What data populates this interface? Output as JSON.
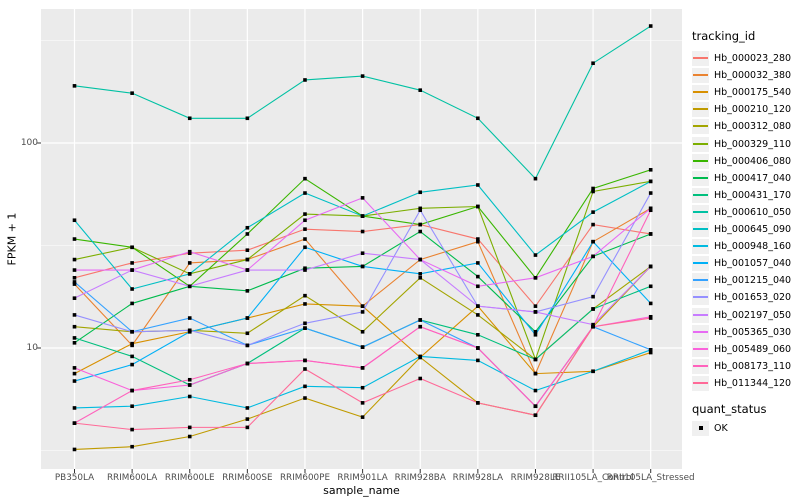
{
  "figure": {
    "bg": "#FFFFFF",
    "panel_bg": "#EBEBEB",
    "grid_color": "#FFFFFF",
    "tick_color": "#333333",
    "axis_text_color": "#4D4D4D",
    "point_color": "#000000"
  },
  "axes": {
    "x_title": "sample_name",
    "y_title": "FPKM + 1",
    "y_major_ticks": [
      {
        "label": "100",
        "value": 100
      },
      {
        "label": "10",
        "value": 10
      }
    ],
    "y_minor_values": [
      316.2,
      31.62,
      3.162
    ]
  },
  "legend": {
    "tracking_title": "tracking_id",
    "quant_title": "quant_status",
    "quant_items": [
      {
        "label": "OK",
        "shape": "square",
        "color": "#000000"
      }
    ]
  },
  "chart_data": {
    "type": "line",
    "title": "",
    "xlabel": "sample_name",
    "ylabel": "FPKM + 1",
    "y_scale": "log10",
    "ylim": [
      2.6,
      450
    ],
    "grid": true,
    "legend_position": "right",
    "point_shape": "square",
    "point_color": "#000000",
    "quant_status": "OK",
    "categories": [
      "PB350LA",
      "RRIM600LA",
      "RRIM600LE",
      "RRIM600SE",
      "RRIM600PE",
      "RRIM901LA",
      "RRIM928BA",
      "RRIM928LA",
      "RRIM928LE",
      "RRII105LA_Control",
      "RRII105LA_Stressed"
    ],
    "series": [
      {
        "name": "Hb_000023_280",
        "color": "#F8766D",
        "values": [
          22,
          26,
          29,
          30,
          38,
          37,
          40,
          34,
          16,
          40,
          36
        ]
      },
      {
        "name": "Hb_000032_380",
        "color": "#EA8331",
        "values": [
          20.5,
          10.3,
          26,
          27,
          34,
          16,
          27,
          33,
          7.5,
          33,
          48
        ]
      },
      {
        "name": "Hb_000175_540",
        "color": "#D89000",
        "values": [
          7.5,
          10.5,
          12,
          14,
          16.4,
          16,
          9,
          16,
          7.5,
          7.7,
          9.5
        ]
      },
      {
        "name": "Hb_000210_120",
        "color": "#C09B00",
        "values": [
          3.2,
          3.3,
          3.7,
          4.5,
          5.7,
          4.6,
          9,
          5.4,
          4.7,
          12.7,
          25
        ]
      },
      {
        "name": "Hb_000312_080",
        "color": "#A3A500",
        "values": [
          12.7,
          12,
          12.2,
          11.8,
          18,
          12,
          22,
          14.5,
          8.8,
          15.5,
          25
        ]
      },
      {
        "name": "Hb_000329_110",
        "color": "#7CAE00",
        "values": [
          27,
          31,
          23,
          27,
          45,
          44,
          48,
          49,
          8.8,
          58,
          65
        ]
      },
      {
        "name": "Hb_000406_080",
        "color": "#39B600",
        "values": [
          34,
          31,
          20,
          36,
          67,
          44,
          40,
          49,
          22,
          60,
          74
        ]
      },
      {
        "name": "Hb_000417_040",
        "color": "#00BB4E",
        "values": [
          10.6,
          16.5,
          20,
          19,
          24.5,
          25,
          37,
          22.3,
          12,
          28,
          36
        ]
      },
      {
        "name": "Hb_000431_170",
        "color": "#00BF7D",
        "values": [
          11.2,
          9.1,
          6.6,
          8.4,
          12.5,
          10.1,
          13.7,
          11.6,
          8.8,
          15.5,
          20
        ]
      },
      {
        "name": "Hb_000610_050",
        "color": "#00C1A3",
        "values": [
          190,
          175,
          132,
          132,
          203,
          212,
          181,
          132,
          67,
          245,
          372
        ]
      },
      {
        "name": "Hb_000645_090",
        "color": "#00BFC4",
        "values": [
          42,
          19.4,
          23,
          38.6,
          57,
          44,
          57.5,
          62.4,
          28.4,
          46,
          65
        ]
      },
      {
        "name": "Hb_000948_160",
        "color": "#00BAE0",
        "values": [
          5.1,
          5.2,
          5.8,
          5.1,
          6.5,
          6.4,
          9.1,
          8.7,
          6.2,
          7.7,
          9.8
        ]
      },
      {
        "name": "Hb_001057_040",
        "color": "#00B0F6",
        "values": [
          6.9,
          8.3,
          12,
          14,
          31,
          25,
          23,
          26,
          11.6,
          33,
          16.5
        ]
      },
      {
        "name": "Hb_001215_040",
        "color": "#35A2FF",
        "values": [
          21,
          12,
          14,
          10.3,
          12.5,
          10.1,
          13.7,
          10,
          5.2,
          12.7,
          9.8
        ]
      },
      {
        "name": "Hb_001653_020",
        "color": "#9590FF",
        "values": [
          14.5,
          12,
          12.2,
          10.3,
          13.2,
          15,
          47,
          16,
          15,
          17.8,
          57
        ]
      },
      {
        "name": "Hb_002197_050",
        "color": "#C77CFF",
        "values": [
          17.5,
          24,
          20,
          24,
          24,
          29,
          27,
          16,
          15,
          13,
          25
        ]
      },
      {
        "name": "Hb_005365_030",
        "color": "#E76BF3",
        "values": [
          24,
          24,
          29.5,
          24,
          42,
          54,
          27,
          20,
          22,
          28,
          48
        ]
      },
      {
        "name": "Hb_005489_060",
        "color": "#FA62DB",
        "values": [
          8,
          6.2,
          6.6,
          8.4,
          8.7,
          8,
          12.7,
          10,
          5.2,
          12.7,
          14.2
        ]
      },
      {
        "name": "Hb_008173_110",
        "color": "#FF62BC",
        "values": [
          4.3,
          6.2,
          7,
          8.4,
          8.7,
          8,
          12.7,
          10,
          5.2,
          12.7,
          47
        ]
      },
      {
        "name": "Hb_011344_120",
        "color": "#FF6A98",
        "values": [
          4.3,
          4.0,
          4.1,
          4.1,
          7.9,
          5.4,
          7.1,
          5.4,
          4.7,
          12.7,
          14
        ]
      }
    ]
  }
}
